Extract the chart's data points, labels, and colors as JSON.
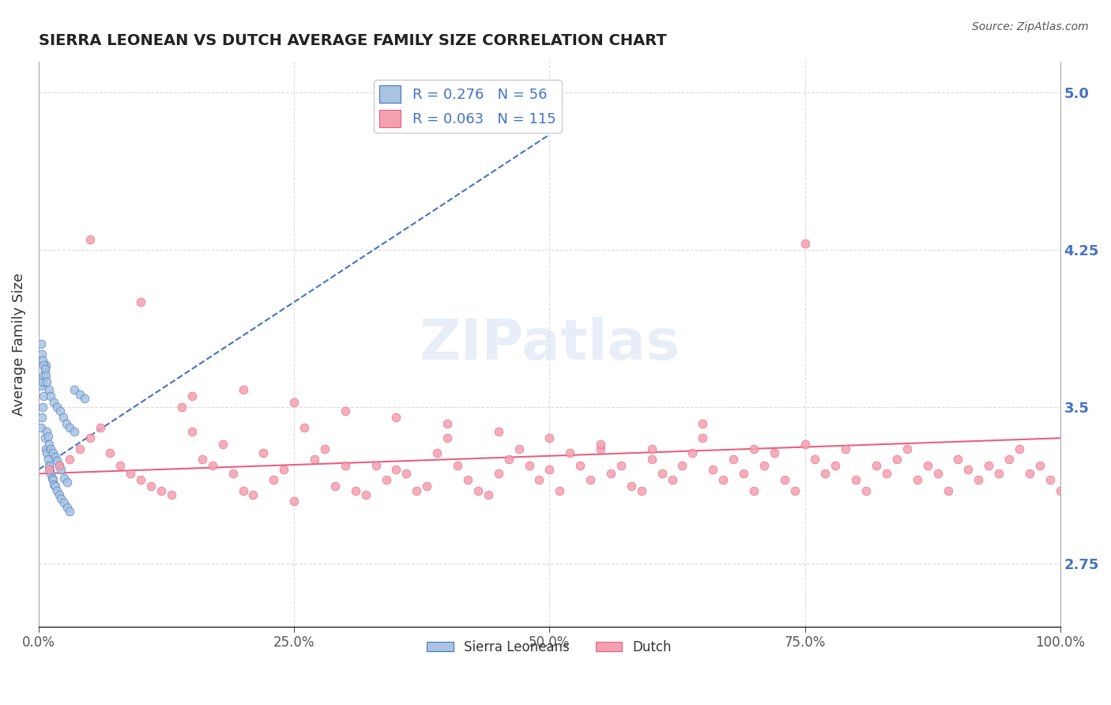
{
  "title": "SIERRA LEONEAN VS DUTCH AVERAGE FAMILY SIZE CORRELATION CHART",
  "source_text": "Source: ZipAtlas.com",
  "xlabel": "",
  "ylabel": "Average Family Size",
  "xlim": [
    0,
    1
  ],
  "ylim": [
    2.45,
    5.15
  ],
  "yticks": [
    2.75,
    3.5,
    4.25,
    5.0
  ],
  "xticks": [
    0,
    0.25,
    0.5,
    0.75,
    1.0
  ],
  "xticklabels": [
    "0.0%",
    "25.0%",
    "50.0%",
    "75.0%",
    "100.0%"
  ],
  "legend_R1": "0.276",
  "legend_N1": "56",
  "legend_R2": "0.063",
  "legend_N2": "115",
  "color_blue": "#a8c4e0",
  "color_pink": "#f4a0b0",
  "color_blue_dark": "#4472c4",
  "color_pink_dark": "#e86080",
  "color_text_blue": "#4472c4",
  "color_watermark": "#d0dff0",
  "background_color": "#ffffff",
  "grid_color": "#cccccc",
  "blue_scatter_x": [
    0.002,
    0.003,
    0.004,
    0.005,
    0.006,
    0.007,
    0.008,
    0.009,
    0.01,
    0.011,
    0.012,
    0.013,
    0.014,
    0.015,
    0.016,
    0.018,
    0.02,
    0.022,
    0.025,
    0.028,
    0.03,
    0.035,
    0.04,
    0.045,
    0.003,
    0.004,
    0.005,
    0.006,
    0.007,
    0.008,
    0.009,
    0.01,
    0.012,
    0.014,
    0.016,
    0.018,
    0.02,
    0.022,
    0.025,
    0.028,
    0.002,
    0.003,
    0.004,
    0.005,
    0.006,
    0.007,
    0.008,
    0.01,
    0.012,
    0.015,
    0.018,
    0.021,
    0.024,
    0.027,
    0.03,
    0.035
  ],
  "blue_scatter_y": [
    3.4,
    3.45,
    3.5,
    3.55,
    3.35,
    3.3,
    3.28,
    3.25,
    3.22,
    3.2,
    3.18,
    3.16,
    3.15,
    3.13,
    3.12,
    3.1,
    3.08,
    3.06,
    3.04,
    3.02,
    3.0,
    3.58,
    3.56,
    3.54,
    3.6,
    3.62,
    3.65,
    3.68,
    3.7,
    3.38,
    3.36,
    3.32,
    3.3,
    3.28,
    3.26,
    3.24,
    3.22,
    3.2,
    3.16,
    3.14,
    3.8,
    3.75,
    3.72,
    3.7,
    3.68,
    3.65,
    3.62,
    3.58,
    3.55,
    3.52,
    3.5,
    3.48,
    3.45,
    3.42,
    3.4,
    3.38
  ],
  "pink_scatter_x": [
    0.01,
    0.02,
    0.03,
    0.04,
    0.05,
    0.06,
    0.07,
    0.08,
    0.09,
    0.1,
    0.11,
    0.12,
    0.13,
    0.14,
    0.15,
    0.16,
    0.17,
    0.18,
    0.19,
    0.2,
    0.21,
    0.22,
    0.23,
    0.24,
    0.25,
    0.26,
    0.27,
    0.28,
    0.29,
    0.3,
    0.31,
    0.32,
    0.33,
    0.34,
    0.35,
    0.36,
    0.37,
    0.38,
    0.39,
    0.4,
    0.41,
    0.42,
    0.43,
    0.44,
    0.45,
    0.46,
    0.47,
    0.48,
    0.49,
    0.5,
    0.51,
    0.52,
    0.53,
    0.54,
    0.55,
    0.56,
    0.57,
    0.58,
    0.59,
    0.6,
    0.61,
    0.62,
    0.63,
    0.64,
    0.65,
    0.66,
    0.67,
    0.68,
    0.69,
    0.7,
    0.71,
    0.72,
    0.73,
    0.74,
    0.75,
    0.76,
    0.77,
    0.78,
    0.79,
    0.8,
    0.81,
    0.82,
    0.83,
    0.84,
    0.85,
    0.86,
    0.87,
    0.88,
    0.89,
    0.9,
    0.91,
    0.92,
    0.93,
    0.94,
    0.95,
    0.96,
    0.97,
    0.98,
    0.99,
    1.0,
    0.05,
    0.1,
    0.15,
    0.2,
    0.25,
    0.3,
    0.35,
    0.4,
    0.45,
    0.5,
    0.55,
    0.6,
    0.65,
    0.7,
    0.75
  ],
  "pink_scatter_y": [
    3.2,
    3.22,
    3.25,
    3.3,
    3.35,
    3.4,
    3.28,
    3.22,
    3.18,
    3.15,
    3.12,
    3.1,
    3.08,
    3.5,
    3.38,
    3.25,
    3.22,
    3.32,
    3.18,
    3.1,
    3.08,
    3.28,
    3.15,
    3.2,
    3.05,
    3.4,
    3.25,
    3.3,
    3.12,
    3.22,
    3.1,
    3.08,
    3.22,
    3.15,
    3.2,
    3.18,
    3.1,
    3.12,
    3.28,
    3.35,
    3.22,
    3.15,
    3.1,
    3.08,
    3.18,
    3.25,
    3.3,
    3.22,
    3.15,
    3.2,
    3.1,
    3.28,
    3.22,
    3.15,
    3.3,
    3.18,
    3.22,
    3.12,
    3.1,
    3.25,
    3.18,
    3.15,
    3.22,
    3.28,
    3.35,
    3.2,
    3.15,
    3.25,
    3.18,
    3.1,
    3.22,
    3.28,
    3.15,
    3.1,
    3.32,
    3.25,
    3.18,
    3.22,
    3.3,
    3.15,
    3.1,
    3.22,
    3.18,
    3.25,
    3.3,
    3.15,
    3.22,
    3.18,
    3.1,
    3.25,
    3.2,
    3.15,
    3.22,
    3.18,
    3.25,
    3.3,
    3.18,
    3.22,
    3.15,
    3.1,
    4.3,
    4.0,
    3.55,
    3.58,
    3.52,
    3.48,
    3.45,
    3.42,
    3.38,
    3.35,
    3.32,
    3.3,
    3.42,
    3.3,
    4.28
  ],
  "blue_trend_x": [
    0,
    0.5
  ],
  "blue_trend_y": [
    3.2,
    4.8
  ],
  "pink_trend_x": [
    0,
    1.0
  ],
  "pink_trend_y": [
    3.18,
    3.35
  ]
}
